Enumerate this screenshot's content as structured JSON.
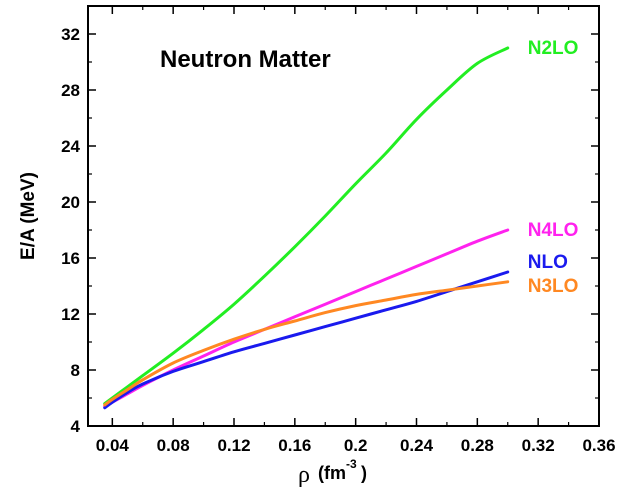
{
  "chart_data": {
    "type": "line",
    "title": "Neutron Matter",
    "xlabel": "ρ (fm⁻³)",
    "xlabel_symbol": "ρ",
    "xlabel_unit": "(fm",
    "xlabel_sup": "-3",
    "xlabel_close": ")",
    "ylabel": "E/A (MeV)",
    "xlim": [
      0.024,
      0.36
    ],
    "ylim": [
      4,
      34
    ],
    "xticks": [
      0.04,
      0.08,
      0.12,
      0.16,
      0.2,
      0.24,
      0.28,
      0.32,
      0.36
    ],
    "xtick_labels": [
      "0.04",
      "0.08",
      "0.12",
      "0.16",
      "0.2",
      "0.24",
      "0.28",
      "0.32",
      "0.36"
    ],
    "yticks": [
      4,
      8,
      12,
      16,
      20,
      24,
      28,
      32
    ],
    "ytick_labels": [
      "4",
      "8",
      "12",
      "16",
      "20",
      "24",
      "28",
      "32"
    ],
    "grid": false,
    "legend": "inline labels at right end of each curve",
    "series": [
      {
        "name": "N2LO",
        "color": "#22ee22",
        "x": [
          0.035,
          0.04,
          0.05,
          0.06,
          0.08,
          0.1,
          0.12,
          0.14,
          0.16,
          0.18,
          0.2,
          0.22,
          0.24,
          0.26,
          0.28,
          0.3
        ],
        "y": [
          5.6,
          6.0,
          6.8,
          7.6,
          9.2,
          10.9,
          12.7,
          14.7,
          16.8,
          19.0,
          21.3,
          23.5,
          25.9,
          28.0,
          29.9,
          31.0
        ]
      },
      {
        "name": "N4LO",
        "color": "#ff22ee",
        "x": [
          0.035,
          0.04,
          0.05,
          0.06,
          0.08,
          0.1,
          0.12,
          0.14,
          0.16,
          0.18,
          0.2,
          0.22,
          0.24,
          0.26,
          0.28,
          0.3
        ],
        "y": [
          5.4,
          5.7,
          6.3,
          6.9,
          8.0,
          9.0,
          10.0,
          10.9,
          11.8,
          12.7,
          13.6,
          14.5,
          15.4,
          16.3,
          17.2,
          18.0
        ]
      },
      {
        "name": "NLO",
        "color": "#1a1aee",
        "x": [
          0.035,
          0.04,
          0.05,
          0.06,
          0.08,
          0.1,
          0.12,
          0.14,
          0.16,
          0.18,
          0.2,
          0.22,
          0.24,
          0.26,
          0.28,
          0.3
        ],
        "y": [
          5.3,
          5.7,
          6.4,
          7.0,
          7.9,
          8.6,
          9.3,
          9.9,
          10.5,
          11.1,
          11.7,
          12.3,
          12.9,
          13.6,
          14.3,
          15.0
        ]
      },
      {
        "name": "N3LO",
        "color": "#ff8822",
        "x": [
          0.035,
          0.04,
          0.05,
          0.06,
          0.08,
          0.1,
          0.12,
          0.14,
          0.16,
          0.18,
          0.2,
          0.22,
          0.24,
          0.26,
          0.28,
          0.3
        ],
        "y": [
          5.5,
          5.9,
          6.6,
          7.3,
          8.5,
          9.4,
          10.2,
          10.9,
          11.5,
          12.1,
          12.6,
          13.0,
          13.4,
          13.7,
          14.0,
          14.3
        ]
      }
    ]
  }
}
